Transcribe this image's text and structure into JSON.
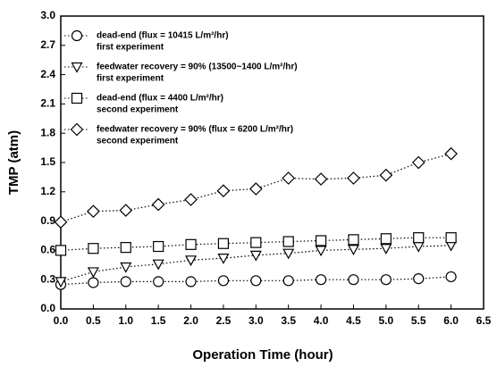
{
  "chart_data": {
    "type": "line",
    "xlabel": "Operation Time (hour)",
    "ylabel": "TMP (atm)",
    "x": [
      0,
      0.5,
      1,
      1.5,
      2,
      2.5,
      3,
      3.5,
      4,
      4.5,
      5,
      5.5,
      6
    ],
    "xlim": [
      0,
      6.5
    ],
    "ylim": [
      0,
      3
    ],
    "xticks": [
      {
        "value": 0,
        "label": "0.0"
      },
      0.5,
      {
        "value": 1,
        "label": "1.0"
      },
      1.5,
      {
        "value": 2,
        "label": "2.0"
      },
      2.5,
      {
        "value": 3,
        "label": "3.0"
      },
      3.5,
      {
        "value": 4,
        "label": "4.0"
      },
      4.5,
      {
        "value": 5,
        "label": "5.0"
      },
      5.5,
      {
        "value": 6,
        "label": "6.0"
      },
      6.5
    ],
    "yticks": [
      {
        "value": 0,
        "label": "0.0"
      },
      0.3,
      0.6,
      0.9,
      1.2,
      1.5,
      1.8,
      2.1,
      2.4,
      2.7,
      {
        "value": 3,
        "label": "3.0"
      }
    ],
    "grid": false,
    "legend": "upper left",
    "series": [
      {
        "name": "dead-end (flux = 10415 L/m²/hr)",
        "note": "first experiment",
        "marker": "circle",
        "color": "#000000",
        "values": [
          0.25,
          0.27,
          0.28,
          0.28,
          0.28,
          0.29,
          0.29,
          0.29,
          0.3,
          0.3,
          0.3,
          0.31,
          0.33
        ]
      },
      {
        "name": "feedwater recovery = 90% (13500~1400 L/m²/hr)",
        "note": "first experiment",
        "marker": "triangle-down",
        "color": "#000000",
        "values": [
          0.28,
          0.38,
          0.43,
          0.46,
          0.5,
          0.52,
          0.55,
          0.57,
          0.6,
          0.61,
          0.62,
          0.64,
          0.65
        ]
      },
      {
        "name": "dead-end (flux = 4400 L/m²/hr)",
        "note": "second experiment",
        "marker": "square",
        "color": "#000000",
        "values": [
          0.6,
          0.62,
          0.63,
          0.64,
          0.66,
          0.67,
          0.68,
          0.69,
          0.7,
          0.71,
          0.72,
          0.73,
          0.73
        ]
      },
      {
        "name": "feedwater recovery = 90% (flux = 6200 L/m²/hr)",
        "note": "second experiment",
        "marker": "diamond",
        "color": "#000000",
        "values": [
          0.89,
          1.0,
          1.01,
          1.07,
          1.12,
          1.21,
          1.23,
          1.34,
          1.33,
          1.34,
          1.37,
          1.5,
          1.59
        ]
      }
    ]
  }
}
